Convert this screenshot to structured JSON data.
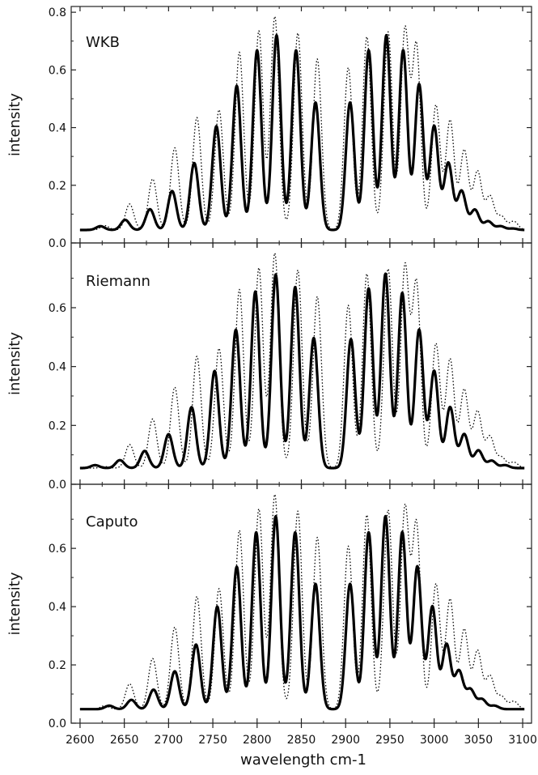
{
  "xlabel": "wavelength cm-1",
  "chart_data": [
    {
      "type": "line",
      "title": "WKB",
      "ylabel": "intensity",
      "xlim": [
        2590,
        3110
      ],
      "ylim": [
        0,
        0.82
      ],
      "yticks": [
        0.0,
        0.2,
        0.4,
        0.6,
        0.8
      ],
      "ytick_labels": [
        "0.0",
        "0.2",
        "0.4",
        "0.6",
        "0.8"
      ],
      "baseline": 0.045,
      "line_width": 5.5,
      "series": [
        {
          "style": "solid",
          "peaks": [
            {
              "x": 2623,
              "y": 0.058
            },
            {
              "x": 2651,
              "y": 0.08
            },
            {
              "x": 2679,
              "y": 0.117
            },
            {
              "x": 2704,
              "y": 0.18
            },
            {
              "x": 2729,
              "y": 0.277
            },
            {
              "x": 2754,
              "y": 0.405
            },
            {
              "x": 2777,
              "y": 0.545
            },
            {
              "x": 2800,
              "y": 0.668
            },
            {
              "x": 2822,
              "y": 0.72
            },
            {
              "x": 2844,
              "y": 0.668
            },
            {
              "x": 2866,
              "y": 0.487
            },
            {
              "x": 2905,
              "y": 0.487
            },
            {
              "x": 2926,
              "y": 0.668
            },
            {
              "x": 2946,
              "y": 0.72
            },
            {
              "x": 2965,
              "y": 0.668
            },
            {
              "x": 2983,
              "y": 0.55
            },
            {
              "x": 3000,
              "y": 0.405
            },
            {
              "x": 3016,
              "y": 0.277
            },
            {
              "x": 3031,
              "y": 0.18
            },
            {
              "x": 3046,
              "y": 0.115
            },
            {
              "x": 3061,
              "y": 0.075
            },
            {
              "x": 3075,
              "y": 0.058
            },
            {
              "x": 3089,
              "y": 0.05
            }
          ]
        },
        {
          "style": "dotted",
          "peaks": [
            {
              "x": 2628,
              "y": 0.06
            },
            {
              "x": 2656,
              "y": 0.135
            },
            {
              "x": 2682,
              "y": 0.222
            },
            {
              "x": 2707,
              "y": 0.33
            },
            {
              "x": 2732,
              "y": 0.435
            },
            {
              "x": 2757,
              "y": 0.462
            },
            {
              "x": 2780,
              "y": 0.662
            },
            {
              "x": 2802,
              "y": 0.735
            },
            {
              "x": 2820,
              "y": 0.785
            },
            {
              "x": 2846,
              "y": 0.728
            },
            {
              "x": 2868,
              "y": 0.638
            },
            {
              "x": 2903,
              "y": 0.608
            },
            {
              "x": 2924,
              "y": 0.715
            },
            {
              "x": 2948,
              "y": 0.732
            },
            {
              "x": 2967,
              "y": 0.735
            },
            {
              "x": 2980,
              "y": 0.68
            },
            {
              "x": 3002,
              "y": 0.478
            },
            {
              "x": 3018,
              "y": 0.425
            },
            {
              "x": 3034,
              "y": 0.322
            },
            {
              "x": 3049,
              "y": 0.248
            },
            {
              "x": 3063,
              "y": 0.162
            },
            {
              "x": 3076,
              "y": 0.092
            },
            {
              "x": 3090,
              "y": 0.075
            }
          ]
        }
      ]
    },
    {
      "type": "line",
      "title": "Riemann",
      "ylabel": "intensity",
      "xlim": [
        2590,
        3110
      ],
      "ylim": [
        0,
        0.82
      ],
      "yticks": [
        0.0,
        0.2,
        0.4,
        0.6
      ],
      "ytick_labels": [
        "0.0",
        "0.2",
        "0.4",
        "0.6"
      ],
      "baseline": 0.055,
      "line_width": 5.5,
      "series": [
        {
          "style": "solid",
          "peaks": [
            {
              "x": 2617,
              "y": 0.065
            },
            {
              "x": 2645,
              "y": 0.082
            },
            {
              "x": 2673,
              "y": 0.113
            },
            {
              "x": 2700,
              "y": 0.17
            },
            {
              "x": 2726,
              "y": 0.262
            },
            {
              "x": 2752,
              "y": 0.385
            },
            {
              "x": 2776,
              "y": 0.525
            },
            {
              "x": 2798,
              "y": 0.655
            },
            {
              "x": 2821,
              "y": 0.713
            },
            {
              "x": 2843,
              "y": 0.67
            },
            {
              "x": 2864,
              "y": 0.497
            },
            {
              "x": 2906,
              "y": 0.493
            },
            {
              "x": 2926,
              "y": 0.665
            },
            {
              "x": 2945,
              "y": 0.715
            },
            {
              "x": 2964,
              "y": 0.65
            },
            {
              "x": 2983,
              "y": 0.525
            },
            {
              "x": 3000,
              "y": 0.385
            },
            {
              "x": 3018,
              "y": 0.262
            },
            {
              "x": 3034,
              "y": 0.17
            },
            {
              "x": 3050,
              "y": 0.115
            },
            {
              "x": 3065,
              "y": 0.08
            },
            {
              "x": 3080,
              "y": 0.065
            }
          ]
        },
        {
          "style": "dotted",
          "peaks": [
            {
              "x": 2628,
              "y": 0.06
            },
            {
              "x": 2656,
              "y": 0.135
            },
            {
              "x": 2682,
              "y": 0.222
            },
            {
              "x": 2707,
              "y": 0.33
            },
            {
              "x": 2732,
              "y": 0.435
            },
            {
              "x": 2757,
              "y": 0.462
            },
            {
              "x": 2780,
              "y": 0.662
            },
            {
              "x": 2802,
              "y": 0.735
            },
            {
              "x": 2820,
              "y": 0.785
            },
            {
              "x": 2846,
              "y": 0.728
            },
            {
              "x": 2868,
              "y": 0.638
            },
            {
              "x": 2903,
              "y": 0.608
            },
            {
              "x": 2924,
              "y": 0.715
            },
            {
              "x": 2948,
              "y": 0.732
            },
            {
              "x": 2967,
              "y": 0.735
            },
            {
              "x": 2980,
              "y": 0.68
            },
            {
              "x": 3002,
              "y": 0.478
            },
            {
              "x": 3018,
              "y": 0.425
            },
            {
              "x": 3034,
              "y": 0.322
            },
            {
              "x": 3049,
              "y": 0.248
            },
            {
              "x": 3063,
              "y": 0.162
            },
            {
              "x": 3076,
              "y": 0.092
            },
            {
              "x": 3090,
              "y": 0.075
            }
          ]
        }
      ]
    },
    {
      "type": "line",
      "title": "Caputo",
      "ylabel": "intensity",
      "xlim": [
        2590,
        3110
      ],
      "ylim": [
        0,
        0.82
      ],
      "yticks": [
        0.0,
        0.2,
        0.4,
        0.6
      ],
      "ytick_labels": [
        "0.0",
        "0.2",
        "0.4",
        "0.6"
      ],
      "xticks": [
        2600,
        2650,
        2700,
        2750,
        2800,
        2850,
        2900,
        2950,
        3000,
        3050,
        3100
      ],
      "xtick_labels": [
        "2600",
        "2650",
        "2700",
        "2750",
        "2800",
        "2850",
        "2900",
        "2950",
        "3000",
        "3050",
        "3100"
      ],
      "baseline": 0.048,
      "line_width": 5.5,
      "series": [
        {
          "style": "solid",
          "peaks": [
            {
              "x": 2633,
              "y": 0.06
            },
            {
              "x": 2658,
              "y": 0.08
            },
            {
              "x": 2683,
              "y": 0.115
            },
            {
              "x": 2707,
              "y": 0.178
            },
            {
              "x": 2731,
              "y": 0.27
            },
            {
              "x": 2755,
              "y": 0.4
            },
            {
              "x": 2777,
              "y": 0.537
            },
            {
              "x": 2799,
              "y": 0.655
            },
            {
              "x": 2821,
              "y": 0.71
            },
            {
              "x": 2843,
              "y": 0.655
            },
            {
              "x": 2866,
              "y": 0.478
            },
            {
              "x": 2905,
              "y": 0.478
            },
            {
              "x": 2926,
              "y": 0.655
            },
            {
              "x": 2945,
              "y": 0.71
            },
            {
              "x": 2964,
              "y": 0.655
            },
            {
              "x": 2981,
              "y": 0.537
            },
            {
              "x": 2998,
              "y": 0.4
            },
            {
              "x": 3014,
              "y": 0.27
            },
            {
              "x": 3028,
              "y": 0.178
            },
            {
              "x": 3041,
              "y": 0.115
            },
            {
              "x": 3054,
              "y": 0.082
            },
            {
              "x": 3068,
              "y": 0.06
            }
          ]
        },
        {
          "style": "dotted",
          "peaks": [
            {
              "x": 2628,
              "y": 0.06
            },
            {
              "x": 2656,
              "y": 0.135
            },
            {
              "x": 2682,
              "y": 0.222
            },
            {
              "x": 2707,
              "y": 0.33
            },
            {
              "x": 2732,
              "y": 0.435
            },
            {
              "x": 2757,
              "y": 0.462
            },
            {
              "x": 2780,
              "y": 0.662
            },
            {
              "x": 2802,
              "y": 0.735
            },
            {
              "x": 2820,
              "y": 0.785
            },
            {
              "x": 2846,
              "y": 0.728
            },
            {
              "x": 2868,
              "y": 0.638
            },
            {
              "x": 2903,
              "y": 0.608
            },
            {
              "x": 2924,
              "y": 0.715
            },
            {
              "x": 2948,
              "y": 0.732
            },
            {
              "x": 2967,
              "y": 0.735
            },
            {
              "x": 2980,
              "y": 0.68
            },
            {
              "x": 3002,
              "y": 0.478
            },
            {
              "x": 3018,
              "y": 0.425
            },
            {
              "x": 3034,
              "y": 0.322
            },
            {
              "x": 3049,
              "y": 0.248
            },
            {
              "x": 3063,
              "y": 0.162
            },
            {
              "x": 3076,
              "y": 0.092
            },
            {
              "x": 3090,
              "y": 0.075
            }
          ]
        }
      ]
    }
  ],
  "colors": {
    "line": "#000000",
    "axis": "#222222",
    "background": "#ffffff"
  }
}
